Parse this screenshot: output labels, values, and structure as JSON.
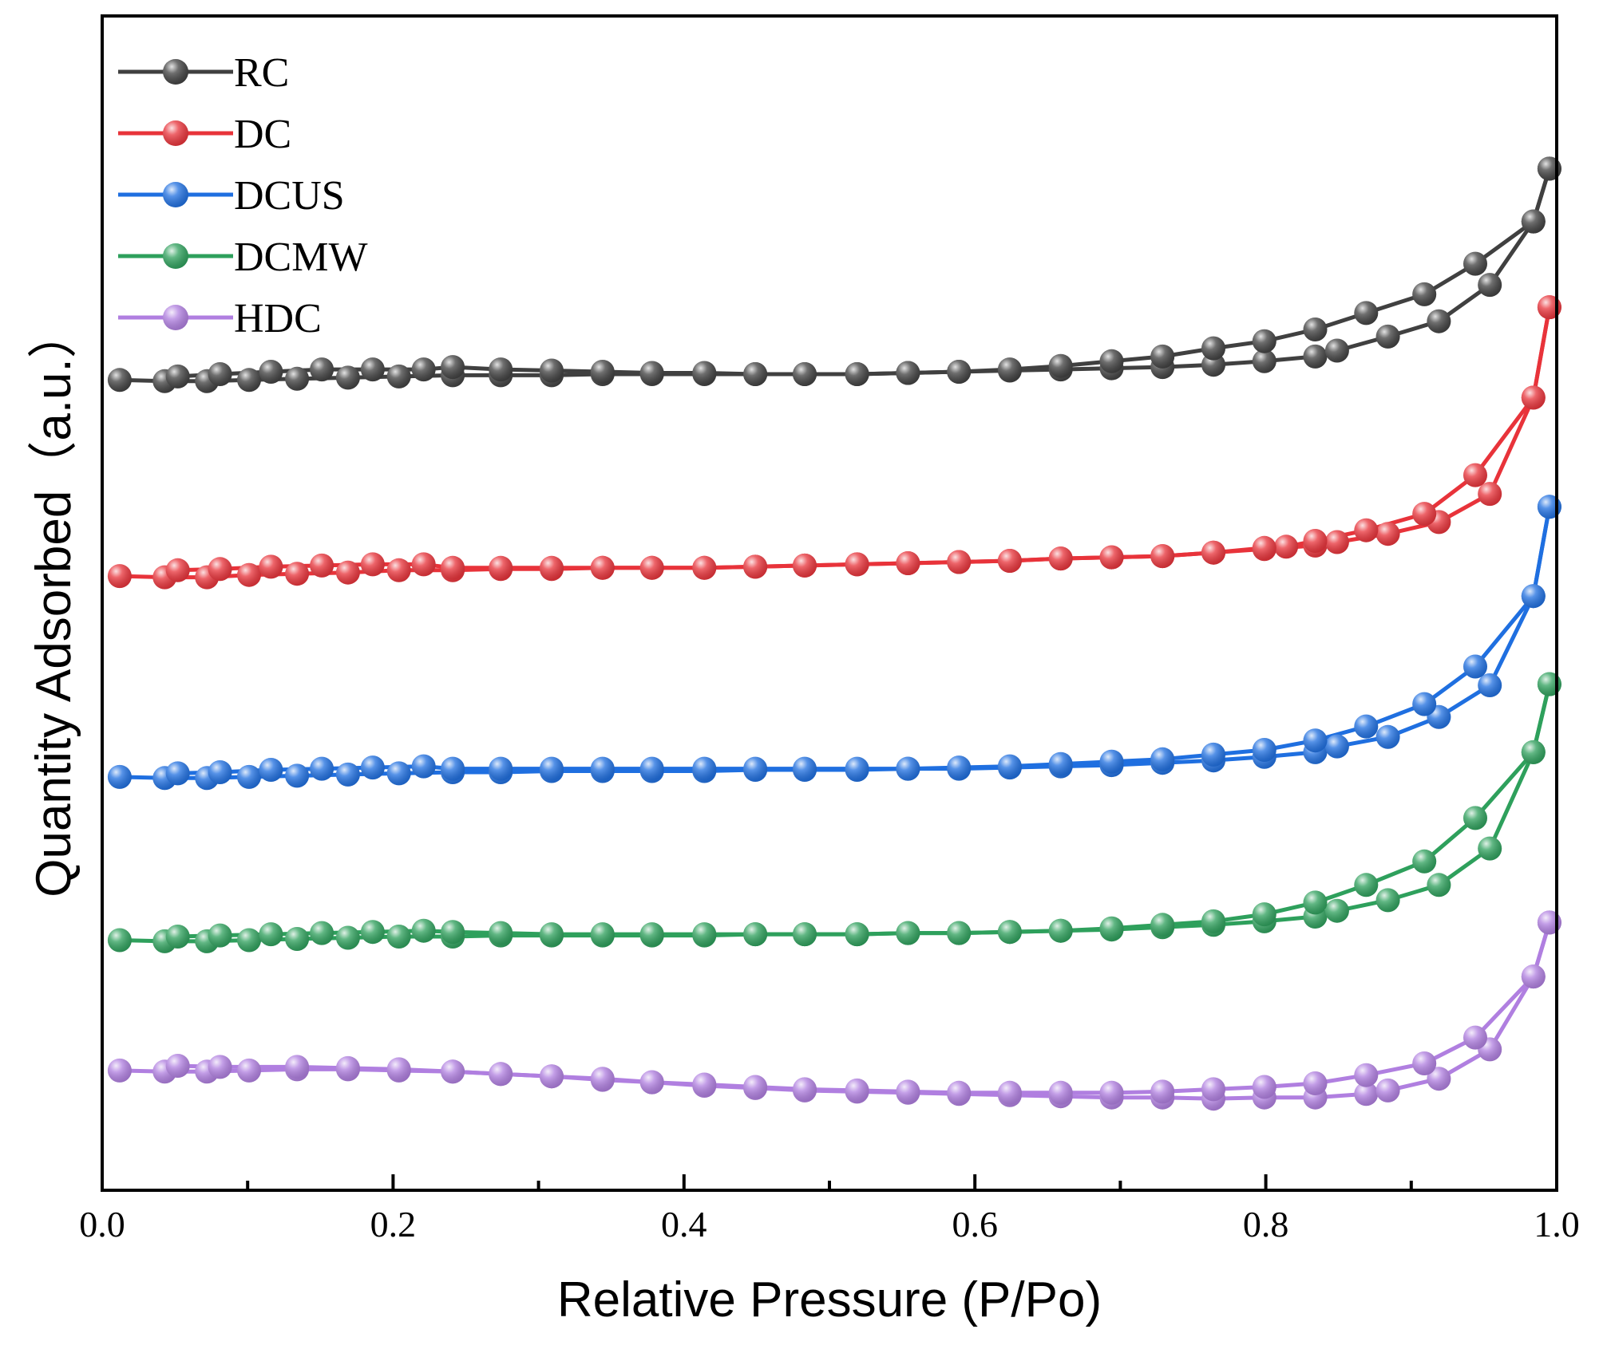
{
  "chart_data": {
    "type": "line",
    "title": "",
    "xlabel": "Relative Pressure (P/Po)",
    "ylabel": "Quantity Adsorbed（a.u.）",
    "xlim": [
      0.0,
      1.0
    ],
    "ylim": [
      0,
      100
    ],
    "x_ticks": [
      "0.0",
      "0.2",
      "0.4",
      "0.6",
      "0.8",
      "1.0"
    ],
    "y_ticks": [],
    "grid": false,
    "legend_position": "top-left",
    "series": [
      {
        "name": "RC",
        "color": "#404040",
        "adsorption": {
          "x": [
            0.012,
            0.043,
            0.072,
            0.101,
            0.134,
            0.169,
            0.204,
            0.241,
            0.274,
            0.309,
            0.344,
            0.378,
            0.414,
            0.449,
            0.483,
            0.519,
            0.554,
            0.589,
            0.624,
            0.659,
            0.694,
            0.729,
            0.764,
            0.799,
            0.834,
            0.849,
            0.884,
            0.919,
            0.954,
            0.984,
            0.995
          ],
          "y": [
            69.0,
            68.9,
            68.9,
            69.0,
            69.1,
            69.2,
            69.3,
            69.4,
            69.4,
            69.4,
            69.5,
            69.5,
            69.5,
            69.5,
            69.5,
            69.5,
            69.6,
            69.7,
            69.8,
            69.9,
            70.0,
            70.1,
            70.3,
            70.6,
            71.0,
            71.5,
            72.7,
            74.0,
            77.1,
            82.5,
            87.0
          ]
        },
        "desorption": {
          "x": [
            0.995,
            0.984,
            0.944,
            0.909,
            0.869,
            0.834,
            0.799,
            0.764,
            0.729,
            0.694,
            0.659,
            0.624,
            0.589,
            0.554,
            0.519,
            0.483,
            0.449,
            0.414,
            0.378,
            0.344,
            0.309,
            0.274,
            0.241,
            0.221,
            0.186,
            0.151,
            0.116,
            0.081,
            0.052
          ],
          "y": [
            87.0,
            82.5,
            78.9,
            76.3,
            74.7,
            73.3,
            72.3,
            71.7,
            71.0,
            70.6,
            70.2,
            69.9,
            69.7,
            69.6,
            69.5,
            69.5,
            69.5,
            69.6,
            69.6,
            69.7,
            69.8,
            69.9,
            70.1,
            69.9,
            69.9,
            69.9,
            69.7,
            69.5,
            69.3
          ]
        }
      },
      {
        "name": "DC",
        "color": "#e8333a",
        "adsorption": {
          "x": [
            0.012,
            0.043,
            0.072,
            0.101,
            0.134,
            0.169,
            0.204,
            0.241,
            0.274,
            0.309,
            0.344,
            0.378,
            0.414,
            0.449,
            0.483,
            0.519,
            0.554,
            0.589,
            0.624,
            0.659,
            0.694,
            0.729,
            0.764,
            0.799,
            0.834,
            0.849,
            0.884,
            0.919,
            0.954,
            0.984,
            0.995
          ],
          "y": [
            52.3,
            52.2,
            52.2,
            52.4,
            52.5,
            52.6,
            52.8,
            52.8,
            52.9,
            52.9,
            53.0,
            53.0,
            53.0,
            53.1,
            53.2,
            53.3,
            53.4,
            53.5,
            53.6,
            53.8,
            53.9,
            54.0,
            54.3,
            54.6,
            54.9,
            55.2,
            55.9,
            56.9,
            59.3,
            67.5,
            75.2
          ]
        },
        "desorption": {
          "x": [
            0.995,
            0.984,
            0.944,
            0.909,
            0.869,
            0.834,
            0.814,
            0.799,
            0.764,
            0.729,
            0.694,
            0.659,
            0.624,
            0.589,
            0.554,
            0.519,
            0.483,
            0.449,
            0.414,
            0.378,
            0.344,
            0.309,
            0.274,
            0.241,
            0.221,
            0.186,
            0.151,
            0.116,
            0.081,
            0.052
          ],
          "y": [
            75.2,
            67.5,
            60.9,
            57.6,
            56.2,
            55.3,
            54.8,
            54.7,
            54.3,
            54.0,
            53.9,
            53.8,
            53.6,
            53.5,
            53.4,
            53.3,
            53.2,
            53.1,
            53.0,
            53.0,
            53.0,
            53.0,
            53.0,
            53.0,
            53.3,
            53.3,
            53.2,
            53.1,
            52.9,
            52.8
          ]
        }
      },
      {
        "name": "DCUS",
        "color": "#1f6fe0",
        "adsorption": {
          "x": [
            0.012,
            0.043,
            0.072,
            0.101,
            0.134,
            0.169,
            0.204,
            0.241,
            0.274,
            0.309,
            0.344,
            0.378,
            0.414,
            0.449,
            0.483,
            0.519,
            0.554,
            0.589,
            0.624,
            0.659,
            0.694,
            0.729,
            0.764,
            0.799,
            0.834,
            0.849,
            0.884,
            0.919,
            0.954,
            0.984,
            0.995
          ],
          "y": [
            35.2,
            35.1,
            35.1,
            35.2,
            35.3,
            35.4,
            35.5,
            35.6,
            35.6,
            35.7,
            35.7,
            35.7,
            35.7,
            35.8,
            35.8,
            35.8,
            35.9,
            35.9,
            36.0,
            36.1,
            36.2,
            36.4,
            36.6,
            36.9,
            37.3,
            37.8,
            38.6,
            40.3,
            43.0,
            50.6,
            58.2
          ]
        },
        "desorption": {
          "x": [
            0.995,
            0.984,
            0.944,
            0.909,
            0.869,
            0.834,
            0.799,
            0.764,
            0.729,
            0.694,
            0.659,
            0.624,
            0.589,
            0.554,
            0.519,
            0.483,
            0.449,
            0.414,
            0.378,
            0.344,
            0.309,
            0.274,
            0.241,
            0.221,
            0.186,
            0.151,
            0.116,
            0.081,
            0.052
          ],
          "y": [
            58.2,
            50.6,
            44.6,
            41.4,
            39.5,
            38.3,
            37.5,
            37.1,
            36.7,
            36.5,
            36.3,
            36.1,
            36.0,
            35.9,
            35.9,
            35.9,
            35.9,
            35.9,
            35.9,
            35.9,
            35.9,
            35.9,
            35.9,
            36.1,
            36.0,
            35.9,
            35.8,
            35.6,
            35.5
          ]
        }
      },
      {
        "name": "DCMW",
        "color": "#2ea05c",
        "adsorption": {
          "x": [
            0.012,
            0.043,
            0.072,
            0.101,
            0.134,
            0.169,
            0.204,
            0.241,
            0.274,
            0.309,
            0.344,
            0.378,
            0.414,
            0.449,
            0.483,
            0.519,
            0.554,
            0.589,
            0.624,
            0.659,
            0.694,
            0.729,
            0.764,
            0.799,
            0.834,
            0.849,
            0.884,
            0.919,
            0.954,
            0.984,
            0.995
          ],
          "y": [
            21.3,
            21.2,
            21.2,
            21.3,
            21.4,
            21.5,
            21.6,
            21.6,
            21.7,
            21.7,
            21.7,
            21.7,
            21.7,
            21.8,
            21.8,
            21.8,
            21.9,
            21.9,
            22.0,
            22.1,
            22.2,
            22.4,
            22.6,
            22.9,
            23.3,
            23.8,
            24.7,
            26.0,
            29.1,
            37.3,
            43.1
          ]
        },
        "desorption": {
          "x": [
            0.995,
            0.984,
            0.944,
            0.909,
            0.869,
            0.834,
            0.799,
            0.764,
            0.729,
            0.694,
            0.659,
            0.624,
            0.589,
            0.554,
            0.519,
            0.483,
            0.449,
            0.414,
            0.378,
            0.344,
            0.309,
            0.274,
            0.241,
            0.221,
            0.186,
            0.151,
            0.116,
            0.081,
            0.052
          ],
          "y": [
            43.1,
            37.3,
            31.7,
            28.0,
            26.0,
            24.5,
            23.5,
            22.9,
            22.6,
            22.3,
            22.1,
            22.0,
            21.9,
            21.9,
            21.8,
            21.8,
            21.8,
            21.8,
            21.8,
            21.8,
            21.8,
            21.9,
            22.0,
            22.1,
            22.0,
            21.9,
            21.8,
            21.7,
            21.6
          ]
        }
      },
      {
        "name": "HDC",
        "color": "#b07fe0",
        "adsorption": {
          "x": [
            0.012,
            0.043,
            0.072,
            0.101,
            0.134,
            0.169,
            0.204,
            0.241,
            0.274,
            0.309,
            0.344,
            0.378,
            0.414,
            0.449,
            0.483,
            0.519,
            0.554,
            0.589,
            0.624,
            0.659,
            0.694,
            0.729,
            0.764,
            0.799,
            0.834,
            0.869,
            0.884,
            0.919,
            0.954,
            0.984,
            0.995
          ],
          "y": [
            10.2,
            10.1,
            10.1,
            10.2,
            10.3,
            10.3,
            10.2,
            10.1,
            9.9,
            9.7,
            9.4,
            9.2,
            8.9,
            8.7,
            8.5,
            8.4,
            8.3,
            8.2,
            8.1,
            8.0,
            7.9,
            7.9,
            7.8,
            7.9,
            7.9,
            8.2,
            8.5,
            9.5,
            12.0,
            18.2,
            22.8
          ]
        },
        "desorption": {
          "x": [
            0.995,
            0.984,
            0.944,
            0.909,
            0.869,
            0.834,
            0.799,
            0.764,
            0.729,
            0.694,
            0.659,
            0.624,
            0.589,
            0.554,
            0.519,
            0.483,
            0.449,
            0.414,
            0.378,
            0.344,
            0.309,
            0.274,
            0.241,
            0.204,
            0.169,
            0.134,
            0.081,
            0.052
          ],
          "y": [
            22.8,
            18.2,
            13.0,
            10.8,
            9.8,
            9.1,
            8.8,
            8.6,
            8.4,
            8.3,
            8.3,
            8.3,
            8.3,
            8.4,
            8.5,
            8.6,
            8.8,
            9.0,
            9.2,
            9.5,
            9.7,
            9.9,
            10.1,
            10.3,
            10.4,
            10.5,
            10.5,
            10.6
          ]
        }
      }
    ]
  }
}
